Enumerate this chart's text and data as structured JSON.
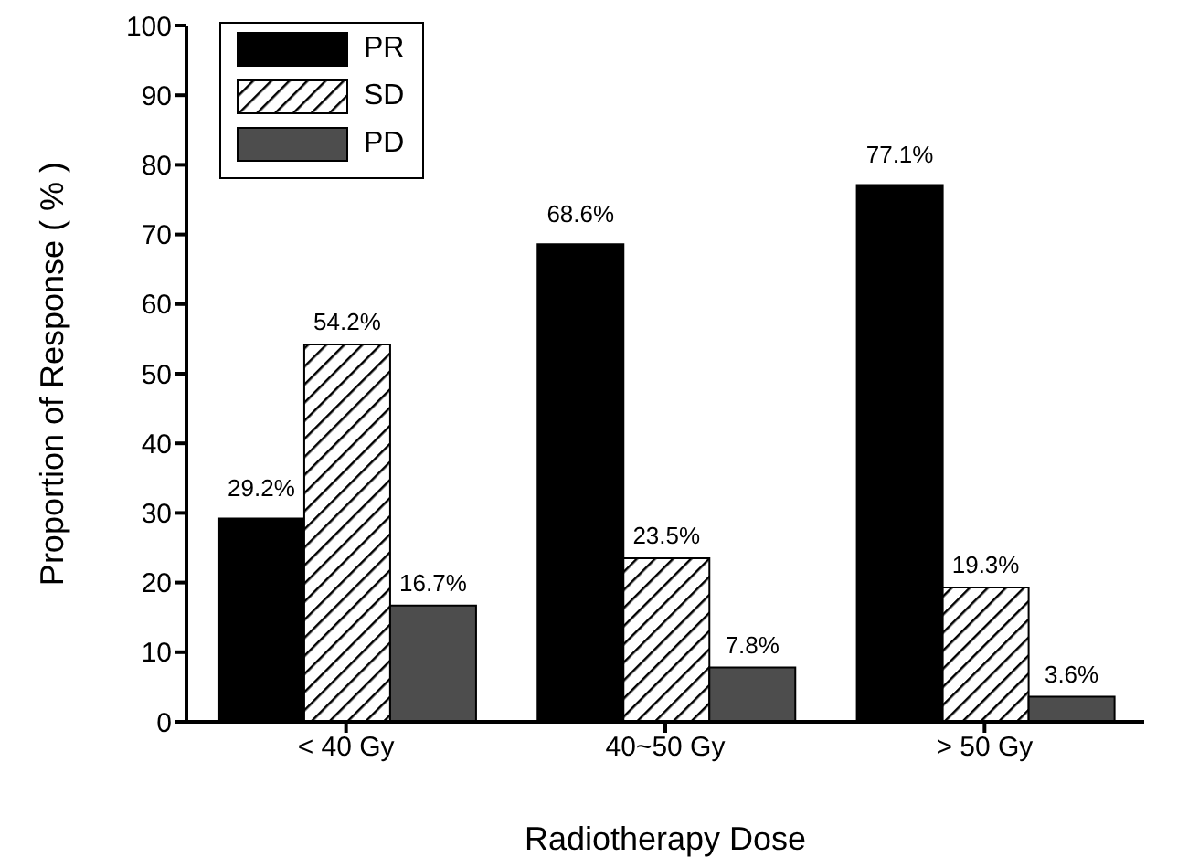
{
  "chart_data": {
    "type": "bar",
    "xlabel": "Radiotherapy Dose",
    "ylabel": "Proportion of Response ( % )",
    "categories": [
      "< 40 Gy",
      "40~50 Gy",
      "> 50 Gy"
    ],
    "series": [
      {
        "name": "PR",
        "color": "#000000",
        "values": [
          29.2,
          68.6,
          77.1
        ],
        "value_labels": [
          "29.2%",
          "68.6%",
          "77.1%"
        ]
      },
      {
        "name": "SD",
        "color": "#000000",
        "values": [
          54.2,
          23.5,
          19.3
        ],
        "value_labels": [
          "54.2%",
          "23.5%",
          "19.3%"
        ]
      },
      {
        "name": "PD",
        "color": "#4d4d4d",
        "values": [
          16.7,
          7.8,
          3.6
        ],
        "value_labels": [
          "16.7%",
          "7.8%",
          "3.6%"
        ]
      }
    ],
    "ylim": [
      0,
      100
    ],
    "yticks": [
      0,
      10,
      20,
      30,
      40,
      50,
      60,
      70,
      80,
      90,
      100
    ],
    "grid": false,
    "legend": "top left"
  }
}
